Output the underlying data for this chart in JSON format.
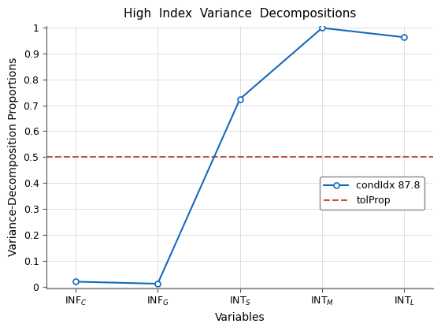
{
  "x_pairs": [
    [
      "INF",
      "C"
    ],
    [
      "INF",
      "G"
    ],
    [
      "INT",
      "S"
    ],
    [
      "INT",
      "M"
    ],
    [
      "INT",
      "L"
    ]
  ],
  "y_values": [
    0.02,
    0.012,
    0.724,
    0.998,
    0.962
  ],
  "tol_prop": 0.5,
  "title": "High  Index  Variance  Decompositions",
  "xlabel": "Variables",
  "ylabel": "Variance-Decomposition Proportions",
  "legend_line": "condIdx 87.8",
  "legend_hline": "tolProp",
  "line_color": "#1469bd",
  "hline_color": "#c0504d",
  "marker": "o",
  "marker_size": 5,
  "marker_edge_width": 1.2,
  "line_width": 1.5,
  "title_fontsize": 11,
  "axis_label_fontsize": 10,
  "tick_fontsize": 9,
  "legend_fontsize": 9,
  "grid_color": "#d9d9d9",
  "ylim_min": 0,
  "ylim_max": 1.0,
  "yticks": [
    0,
    0.1,
    0.2,
    0.3,
    0.4,
    0.5,
    0.6,
    0.7,
    0.8,
    0.9,
    1.0
  ]
}
